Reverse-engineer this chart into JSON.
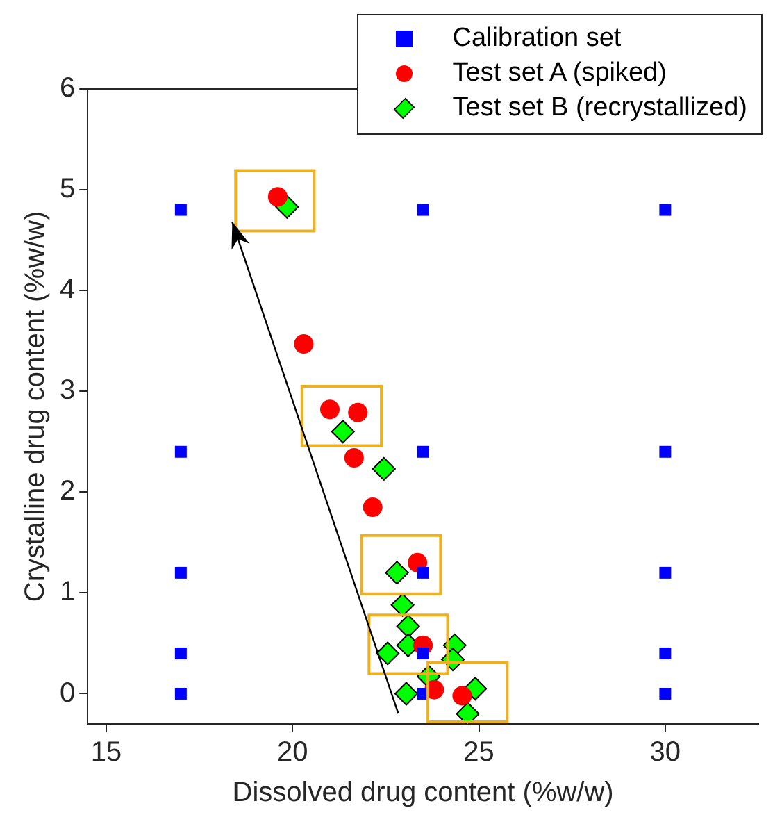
{
  "chart_data": {
    "type": "scatter",
    "xlabel": "Dissolved drug content (%w/w)",
    "ylabel": "Crystalline drug content (%w/w)",
    "xlim": [
      14.5,
      32.5
    ],
    "xticks": [
      15,
      20,
      25,
      30
    ],
    "ylim": [
      -0.3,
      6
    ],
    "yticks": [
      0,
      1,
      2,
      3,
      4,
      5,
      6
    ],
    "grid": false,
    "legend": "top right",
    "series": [
      {
        "name": "Calibration set",
        "color": "#0000ff",
        "marker": "square",
        "x": [
          17,
          17,
          17,
          17,
          17,
          23.5,
          23.5,
          23.5,
          23.5,
          23.5,
          30,
          30,
          30,
          30,
          30
        ],
        "values": [
          4.8,
          2.4,
          1.2,
          0.4,
          0,
          4.8,
          2.4,
          1.2,
          0.4,
          0,
          4.8,
          2.4,
          1.2,
          0.4,
          0
        ]
      },
      {
        "name": "Test set A (spiked)",
        "color": "#ff0000",
        "marker": "circle",
        "x": [
          19.6,
          20.3,
          21.0,
          21.75,
          21.65,
          22.15,
          23.35,
          23.5,
          23.8,
          24.55
        ],
        "values": [
          4.93,
          3.47,
          2.82,
          2.79,
          2.34,
          1.85,
          1.3,
          0.48,
          0.04,
          -0.02
        ]
      },
      {
        "name": "Test set B (recrystallized)",
        "color": "#00ff00",
        "marker": "diamond",
        "x": [
          19.85,
          21.35,
          22.45,
          22.8,
          22.95,
          23.1,
          23.1,
          22.55,
          24.35,
          24.3,
          23.65,
          23.05,
          24.9,
          24.7
        ],
        "values": [
          4.83,
          2.6,
          2.23,
          1.2,
          0.88,
          0.67,
          0.48,
          0.4,
          0.48,
          0.34,
          0.17,
          0.0,
          0.05,
          -0.2
        ]
      }
    ]
  }
}
